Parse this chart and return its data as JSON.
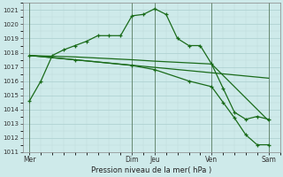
{
  "title": "Pression niveau de la mer( hPa )",
  "background_color": "#ceeaea",
  "grid_color_major": "#aacece",
  "grid_color_minor": "#bddada",
  "line_color": "#1a6b1a",
  "ylim": [
    1011,
    1021.5
  ],
  "yticks": [
    1011,
    1012,
    1013,
    1014,
    1015,
    1016,
    1017,
    1018,
    1019,
    1020,
    1021
  ],
  "day_labels": [
    "Mer",
    "Dim",
    "Jeu",
    "Ven",
    "Sam"
  ],
  "day_positions": [
    0,
    4.5,
    5.5,
    8.0,
    10.5
  ],
  "xlim": [
    -0.3,
    11.0
  ],
  "series1_x": [
    0,
    0.5,
    1.0,
    1.5,
    2.0,
    2.5,
    3.0,
    3.5,
    4.0,
    4.5,
    5.0,
    5.5,
    6.0,
    6.5,
    7.0,
    7.5,
    8.0,
    8.5,
    9.0,
    9.5,
    10.0,
    10.5
  ],
  "series1_y": [
    1014.6,
    1016.0,
    1017.8,
    1018.2,
    1018.5,
    1018.8,
    1019.2,
    1019.2,
    1019.2,
    1020.6,
    1020.7,
    1021.1,
    1020.7,
    1019.0,
    1018.5,
    1018.5,
    1017.2,
    1015.5,
    1013.8,
    1013.3,
    1013.5,
    1013.3
  ],
  "series2_x": [
    0,
    2.0,
    4.5,
    5.5,
    8.0,
    10.5
  ],
  "series2_y": [
    1017.8,
    1017.7,
    1017.5,
    1017.4,
    1017.2,
    1013.2
  ],
  "series3_x": [
    0,
    2.0,
    4.5,
    5.5,
    7.0,
    8.0,
    8.5,
    9.0,
    9.5,
    10.0,
    10.5
  ],
  "series3_y": [
    1017.8,
    1017.5,
    1017.1,
    1016.8,
    1016.0,
    1015.6,
    1014.5,
    1013.4,
    1012.2,
    1011.5,
    1011.5
  ],
  "series4_x": [
    0,
    10.5
  ],
  "series4_y": [
    1017.8,
    1016.2
  ]
}
